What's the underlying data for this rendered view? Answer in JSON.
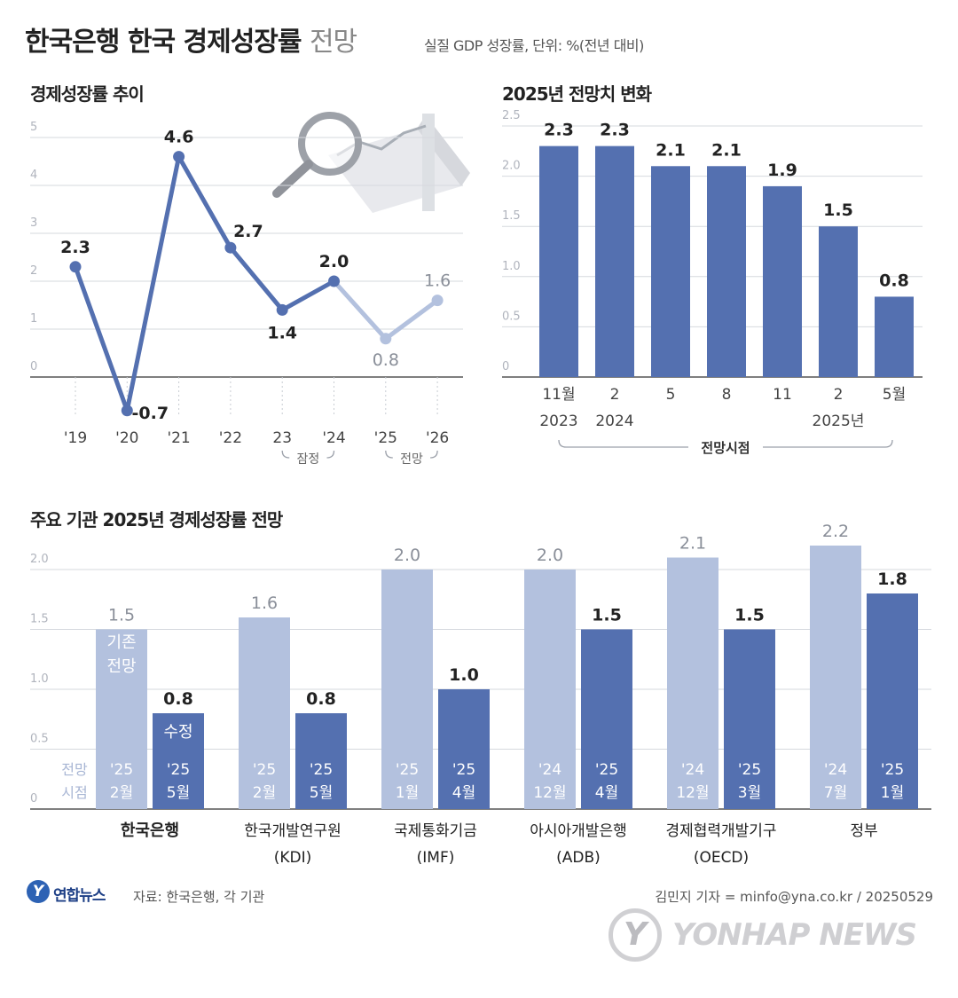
{
  "header": {
    "title_main": "한국은행 한국 경제성장률",
    "title_light": "전망",
    "subtitle": "실질 GDP 성장률, 단위: %(전년 대비)"
  },
  "colors": {
    "dark_blue": "#5470b0",
    "light_blue": "#b3c1de",
    "grid": "#d6d9de"
  },
  "chart_data": [
    {
      "type": "line",
      "title": "경제성장률 추이",
      "x": [
        "'19",
        "'20",
        "'21",
        "'22",
        "23",
        "'24",
        "'25",
        "'26"
      ],
      "values": [
        2.3,
        -0.7,
        4.6,
        2.7,
        1.4,
        2.0,
        0.8,
        1.6
      ],
      "value_labels": [
        "2.3",
        "-0.7",
        "4.6",
        "2.7",
        "1.4",
        "2.0",
        "0.8",
        "1.6"
      ],
      "actual_count": 6,
      "y_ticks": [
        "5",
        "4",
        "3",
        "2",
        "1",
        "0"
      ],
      "ylim": [
        -1,
        5.4
      ],
      "annotations": [
        {
          "text": "잠정",
          "spans": [
            "23",
            "'24"
          ]
        },
        {
          "text": "전망",
          "spans": [
            "'25",
            "'26"
          ]
        }
      ],
      "grid": true
    },
    {
      "type": "bar",
      "title": "2025년 전망치 변화",
      "categories": [
        {
          "line1": "11월",
          "line2": "2023"
        },
        {
          "line1": "2",
          "line2": "2024"
        },
        {
          "line1": "5",
          "line2": ""
        },
        {
          "line1": "8",
          "line2": ""
        },
        {
          "line1": "11",
          "line2": ""
        },
        {
          "line1": "2",
          "line2": "2025년"
        },
        {
          "line1": "5월",
          "line2": ""
        }
      ],
      "values": [
        2.3,
        2.3,
        2.1,
        2.1,
        1.9,
        1.5,
        0.8
      ],
      "value_labels": [
        "2.3",
        "2.3",
        "2.1",
        "2.1",
        "1.9",
        "1.5",
        "0.8"
      ],
      "y_ticks": [
        "2.5",
        "2.0",
        "1.5",
        "1.0",
        "0.5",
        "0"
      ],
      "ylim": [
        0,
        2.5
      ],
      "xlabel": "전망시점",
      "grid": true
    },
    {
      "type": "bar",
      "title": "주요 기관 2025년 경제성장률 전망",
      "y_ticks": [
        "2.0",
        "1.5",
        "1.0",
        "0.5",
        "0"
      ],
      "ylim": [
        0,
        2.0
      ],
      "row_label": {
        "line1": "전망",
        "line2": "시점"
      },
      "first_pair_tags": {
        "previous": [
          "기존",
          "전망"
        ],
        "revised": [
          "수정"
        ]
      },
      "groups": [
        {
          "name": "한국은행",
          "sub": "",
          "previous": {
            "value": 1.5,
            "label": "1.5",
            "when1": "'25",
            "when2": "2월"
          },
          "revised": {
            "value": 0.8,
            "label": "0.8",
            "when1": "'25",
            "when2": "5월"
          }
        },
        {
          "name": "한국개발연구원",
          "sub": "(KDI)",
          "previous": {
            "value": 1.6,
            "label": "1.6",
            "when1": "'25",
            "when2": "2월"
          },
          "revised": {
            "value": 0.8,
            "label": "0.8",
            "when1": "'25",
            "when2": "5월"
          }
        },
        {
          "name": "국제통화기금",
          "sub": "(IMF)",
          "previous": {
            "value": 2.0,
            "label": "2.0",
            "when1": "'25",
            "when2": "1월"
          },
          "revised": {
            "value": 1.0,
            "label": "1.0",
            "when1": "'25",
            "when2": "4월"
          }
        },
        {
          "name": "아시아개발은행",
          "sub": "(ADB)",
          "previous": {
            "value": 2.0,
            "label": "2.0",
            "when1": "'24",
            "when2": "12월"
          },
          "revised": {
            "value": 1.5,
            "label": "1.5",
            "when1": "'25",
            "when2": "4월"
          }
        },
        {
          "name": "경제협력개발기구",
          "sub": "(OECD)",
          "previous": {
            "value": 2.1,
            "label": "2.1",
            "when1": "'24",
            "when2": "12월"
          },
          "revised": {
            "value": 1.5,
            "label": "1.5",
            "when1": "'25",
            "when2": "3월"
          }
        },
        {
          "name": "정부",
          "sub": "",
          "previous": {
            "value": 2.2,
            "label": "2.2",
            "when1": "'24",
            "when2": "7월"
          },
          "revised": {
            "value": 1.8,
            "label": "1.8",
            "when1": "'25",
            "when2": "1월"
          }
        }
      ],
      "grid": true
    }
  ],
  "footer": {
    "logo_text": "연합뉴스",
    "source": "자료: 한국은행, 각 기관",
    "byline": "김민지 기자 = minfo@yna.co.kr / 20250529",
    "watermark": "YONHAP NEWS"
  }
}
